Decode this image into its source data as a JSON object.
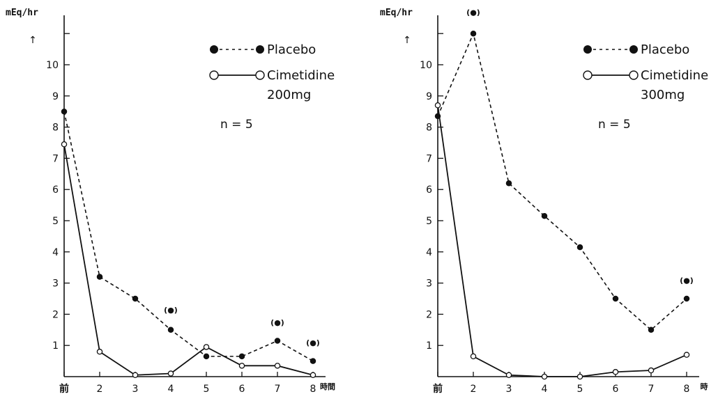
{
  "chart_data": [
    {
      "type": "line",
      "ylabel": "mEq/hr",
      "arrow": "↑",
      "ylim": [
        0,
        12
      ],
      "yticks": [
        "1",
        "2",
        "3",
        "4",
        "5",
        "6",
        "7",
        "8",
        "9",
        "10"
      ],
      "x_tick_labels": [
        "前",
        "2",
        "3",
        "4",
        "5",
        "6",
        "7",
        "8"
      ],
      "x_unit": "時間",
      "x": [
        1,
        2,
        3,
        4,
        5,
        6,
        7,
        8
      ],
      "series": [
        {
          "name": "Placebo",
          "style": "dashed",
          "marker": "filled",
          "values": [
            8.5,
            3.2,
            2.5,
            1.5,
            0.65,
            0.65,
            1.15,
            0.5
          ]
        },
        {
          "name": "Cimetidine",
          "style": "solid",
          "marker": "open",
          "values": [
            7.45,
            0.8,
            0.05,
            0.1,
            0.95,
            0.35,
            0.35,
            0.05
          ]
        }
      ],
      "legend": {
        "placebo": "Placebo",
        "cimetidine": "Cimetidine",
        "dose": "200mg"
      },
      "n_text": "n = 5",
      "annotations": [
        {
          "text": "(●)",
          "x": 4,
          "y": 2.05
        },
        {
          "text": "(●)",
          "x": 7,
          "y": 1.65
        },
        {
          "text": "(●)",
          "x": 8,
          "y": 1.0
        }
      ]
    },
    {
      "type": "line",
      "ylabel": "mEq/hr",
      "arrow": "↑",
      "ylim": [
        0,
        12
      ],
      "yticks": [
        "1",
        "2",
        "3",
        "4",
        "5",
        "6",
        "7",
        "8",
        "9",
        "10"
      ],
      "x_tick_labels": [
        "前",
        "2",
        "3",
        "4",
        "5",
        "6",
        "7",
        "8"
      ],
      "x_unit": "時",
      "x": [
        1,
        2,
        3,
        4,
        5,
        6,
        7,
        8
      ],
      "series": [
        {
          "name": "Placebo",
          "style": "dashed",
          "marker": "filled",
          "values": [
            8.35,
            11.0,
            6.2,
            5.15,
            4.15,
            2.5,
            1.5,
            2.5
          ]
        },
        {
          "name": "Cimetidine",
          "style": "solid",
          "marker": "open",
          "values": [
            8.7,
            0.65,
            0.05,
            0.0,
            0.0,
            0.15,
            0.2,
            0.7
          ]
        }
      ],
      "legend": {
        "placebo": "Placebo",
        "cimetidine": "Cimetidine",
        "dose": "300mg"
      },
      "n_text": "n = 5",
      "annotations": [
        {
          "text": "(●)",
          "x": 2,
          "y": 11.6
        },
        {
          "text": "(●)",
          "x": 8,
          "y": 3.0
        }
      ]
    }
  ]
}
